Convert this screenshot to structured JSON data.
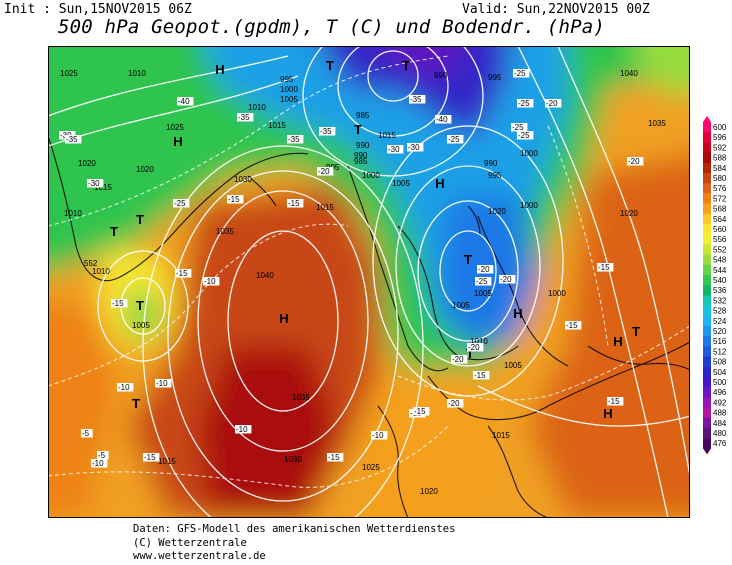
{
  "header": {
    "init": "Init : Sun,15NOV2015 06Z",
    "valid": "Valid: Sun,22NOV2015 00Z",
    "title": "500 hPa Geopot.(gpdm), T (C) und Bodendr. (hPa)"
  },
  "legend": {
    "values": [
      600,
      596,
      592,
      588,
      584,
      580,
      576,
      572,
      568,
      564,
      560,
      556,
      552,
      548,
      544,
      540,
      536,
      532,
      528,
      524,
      520,
      516,
      512,
      508,
      504,
      500,
      496,
      492,
      488,
      484,
      480,
      476
    ],
    "colors": [
      "#ff0a6e",
      "#e6003a",
      "#c8001e",
      "#aa0a0a",
      "#b4280a",
      "#c84614",
      "#dc6414",
      "#ee8214",
      "#f5a01e",
      "#fac828",
      "#fae632",
      "#f0f032",
      "#c8e632",
      "#96dc3c",
      "#64d246",
      "#32c850",
      "#14b464",
      "#14c8b4",
      "#14c8dc",
      "#1eb4f0",
      "#1e96f0",
      "#1e78e6",
      "#1e5adc",
      "#1e3cd2",
      "#2828c8",
      "#4614c8",
      "#6e14c8",
      "#9614b4",
      "#b414a0",
      "#7814a0",
      "#5a1478",
      "#460a5a"
    ]
  },
  "map": {
    "highs": [
      "H",
      "H",
      "H",
      "H",
      "H",
      "H",
      "H"
    ],
    "lows": [
      "T",
      "T",
      "T",
      "T",
      "T",
      "T",
      "T",
      "T",
      "T",
      "T"
    ],
    "isobar_labels": [
      "1025",
      "1010",
      "1020",
      "1025",
      "1020",
      "1015",
      "1010",
      "995",
      "1000",
      "1005",
      "1010",
      "1015",
      "990",
      "985",
      "990",
      "995",
      "1000",
      "1005",
      "1030",
      "1035",
      "1040",
      "1035",
      "1030",
      "1025",
      "1020",
      "1015",
      "1015",
      "1010",
      "1005",
      "1040",
      "1035",
      "1020",
      "1020",
      "1015",
      "1005",
      "995",
      "990",
      "985",
      "1000",
      "1000",
      "1005",
      "1005",
      "1010",
      "1015",
      "990",
      "995",
      "1000"
    ],
    "temp_labels": [
      "-30",
      "-35",
      "-30",
      "-40",
      "-35",
      "-35",
      "-35",
      "-30",
      "-35",
      "-40",
      "-25",
      "-25",
      "-20",
      "-25",
      "-15",
      "-20",
      "-15",
      "-15",
      "-10",
      "-15",
      "-10",
      "-10",
      "-5",
      "-5",
      "-10",
      "-15",
      "-15",
      "-20",
      "-15",
      "-20",
      "-15",
      "-25",
      "-30",
      "-20",
      "-25",
      "-20",
      "-25",
      "-20",
      "-15",
      "-15",
      "-10",
      "-15",
      "-20",
      "-10",
      "-15",
      "-25"
    ],
    "height_label": "552"
  },
  "credits": {
    "line1": "Daten: GFS-Modell des amerikanischen Wetterdienstes",
    "line2": "(C) Wetterzentrale",
    "line3": "www.wetterzentrale.de"
  }
}
